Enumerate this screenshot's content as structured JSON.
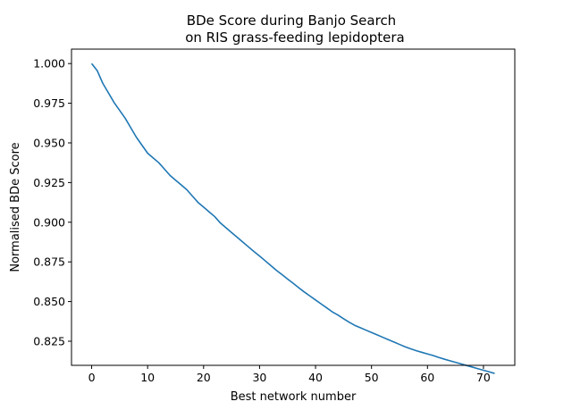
{
  "chart_data": {
    "type": "line",
    "title_line1": "BDe Score during Banjo Search",
    "title_line2": "on RIS grass-feeding lepidoptera",
    "xlabel": "Best network number",
    "ylabel": "Normalised BDe Score",
    "xlim": [
      -3.6,
      75.6
    ],
    "ylim": [
      0.8098,
      1.0091
    ],
    "xticks": [
      0,
      10,
      20,
      30,
      40,
      50,
      60,
      70
    ],
    "xtick_labels": [
      "0",
      "10",
      "20",
      "30",
      "40",
      "50",
      "60",
      "70"
    ],
    "yticks": [
      0.825,
      0.85,
      0.875,
      0.9,
      0.925,
      0.95,
      0.975,
      1.0
    ],
    "ytick_labels": [
      "0.825",
      "0.850",
      "0.875",
      "0.900",
      "0.925",
      "0.950",
      "0.975",
      "1.000"
    ],
    "grid": false,
    "line_color": "#1f77b4",
    "series": [
      {
        "x": [
          0,
          1,
          2,
          3,
          4,
          5,
          6,
          7,
          8,
          9,
          10,
          11,
          12,
          13,
          14,
          15,
          16,
          17,
          18,
          19,
          20,
          21,
          22,
          23,
          24,
          25,
          26,
          27,
          28,
          29,
          30,
          31,
          32,
          33,
          34,
          35,
          36,
          37,
          38,
          39,
          40,
          41,
          42,
          43,
          44,
          45,
          46,
          47,
          48,
          49,
          50,
          51,
          52,
          53,
          54,
          55,
          56,
          57,
          58,
          59,
          60,
          61,
          62,
          63,
          64,
          65,
          66,
          67,
          68,
          69,
          70,
          71,
          72
        ],
        "values": [
          1.0,
          0.9955,
          0.9875,
          0.9815,
          0.9755,
          0.9705,
          0.9655,
          0.9595,
          0.9535,
          0.9485,
          0.9435,
          0.9405,
          0.9375,
          0.9335,
          0.9295,
          0.9265,
          0.9235,
          0.9205,
          0.9165,
          0.9125,
          0.9095,
          0.9065,
          0.9035,
          0.8995,
          0.8965,
          0.8935,
          0.8905,
          0.8875,
          0.8845,
          0.8815,
          0.8787,
          0.8757,
          0.8727,
          0.8697,
          0.867,
          0.8642,
          0.8615,
          0.8587,
          0.856,
          0.8535,
          0.851,
          0.8485,
          0.846,
          0.8435,
          0.8415,
          0.8392,
          0.837,
          0.835,
          0.8335,
          0.832,
          0.8305,
          0.829,
          0.8275,
          0.826,
          0.8245,
          0.823,
          0.8215,
          0.8202,
          0.819,
          0.818,
          0.817,
          0.816,
          0.8148,
          0.8137,
          0.8127,
          0.8117,
          0.8107,
          0.8097,
          0.8087,
          0.8077,
          0.8067,
          0.8057,
          0.8047
        ]
      }
    ]
  }
}
